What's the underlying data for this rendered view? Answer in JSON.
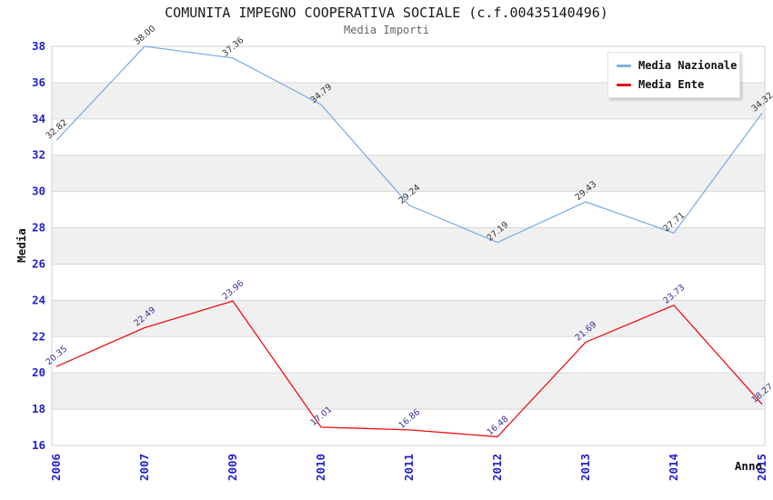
{
  "chart_data": {
    "type": "line",
    "title": "COMUNITA IMPEGNO COOPERATIVA SOCIALE (c.f.00435140496)",
    "subtitle": "Media Importi",
    "xlabel": "Anno",
    "ylabel": "Media",
    "categories": [
      "2006",
      "2007",
      "2009",
      "2010",
      "2011",
      "2012",
      "2013",
      "2014",
      "2015"
    ],
    "series": [
      {
        "name": "Media Nazionale",
        "color": "#7fafe8",
        "label_color": "#333333",
        "values": [
          32.82,
          38.0,
          37.36,
          34.79,
          29.24,
          27.19,
          29.43,
          27.71,
          34.32
        ]
      },
      {
        "name": "Media Ente",
        "color": "#ee1111",
        "label_color": "#333399",
        "values": [
          20.35,
          22.49,
          23.96,
          17.01,
          16.86,
          16.48,
          21.69,
          23.73,
          18.27
        ]
      }
    ],
    "ylim": [
      16,
      38
    ],
    "ytick_step": 2,
    "grid": true,
    "band_shading": "alternating",
    "legend_position": "top-right",
    "colors": {
      "tick_label": "#2222cc",
      "band": "#f0f0f0",
      "gridline": "#d8d8d8",
      "plot_border": "#d0d0d0",
      "axis_title": "#111111"
    }
  }
}
